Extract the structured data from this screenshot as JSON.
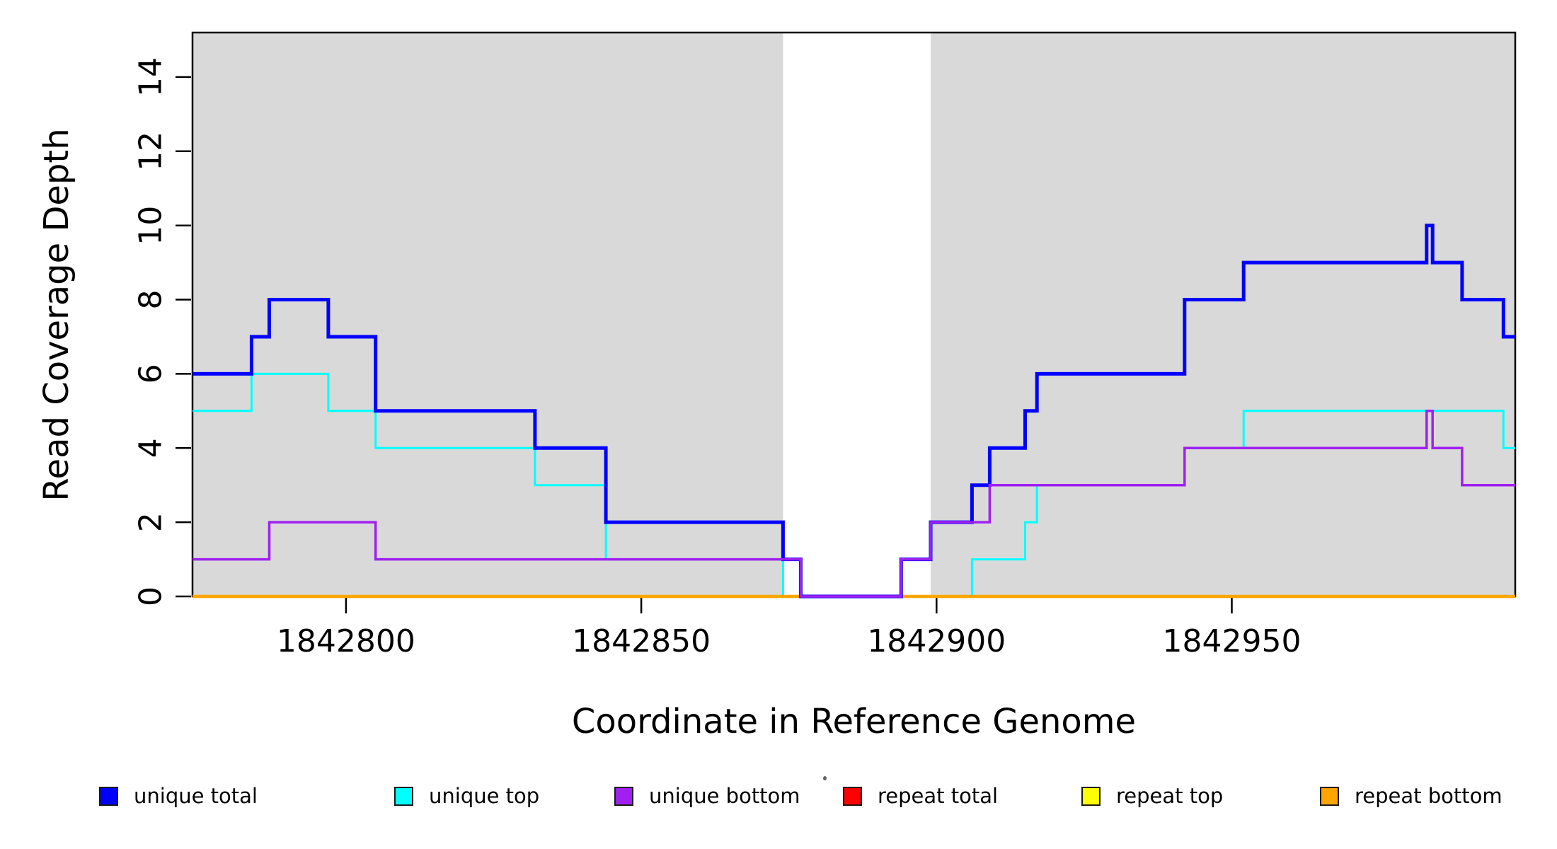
{
  "chart_data": {
    "type": "step",
    "title": "",
    "xlabel": "Coordinate in Reference Genome",
    "ylabel": "Read Coverage Depth",
    "xlim": [
      1842774,
      1842998
    ],
    "ylim": [
      0,
      15.2
    ],
    "x_ticks": [
      1842800,
      1842850,
      1842900,
      1842950
    ],
    "y_ticks": [
      0,
      2,
      4,
      6,
      8,
      10,
      12,
      14
    ],
    "grid": "off",
    "shade_color": "#d9d9d9",
    "shaded_regions": [
      [
        1842774,
        1842874
      ],
      [
        1842899,
        1842998
      ]
    ],
    "unshaded_gap": [
      1842874,
      1842899
    ],
    "draw_order": [
      "repeat total",
      "repeat top",
      "unique top",
      "repeat bottom",
      "unique total",
      "unique bottom"
    ],
    "series": [
      {
        "name": "unique total",
        "color": "#0000ff",
        "width": 5,
        "steps": [
          [
            1842774,
            6
          ],
          [
            1842784,
            7
          ],
          [
            1842787,
            8
          ],
          [
            1842797,
            7
          ],
          [
            1842805,
            5
          ],
          [
            1842832,
            4
          ],
          [
            1842844,
            2
          ],
          [
            1842874,
            1
          ],
          [
            1842877,
            0
          ],
          [
            1842894,
            1
          ],
          [
            1842899,
            2
          ],
          [
            1842906,
            3
          ],
          [
            1842909,
            4
          ],
          [
            1842915,
            5
          ],
          [
            1842917,
            6
          ],
          [
            1842942,
            8
          ],
          [
            1842952,
            9
          ],
          [
            1842983,
            10
          ],
          [
            1842984,
            9
          ],
          [
            1842989,
            8
          ],
          [
            1842996,
            7
          ]
        ]
      },
      {
        "name": "unique top",
        "color": "#00ffff",
        "width": 3,
        "steps": [
          [
            1842774,
            5
          ],
          [
            1842784,
            6
          ],
          [
            1842797,
            5
          ],
          [
            1842805,
            4
          ],
          [
            1842832,
            3
          ],
          [
            1842844,
            1
          ],
          [
            1842874,
            0
          ],
          [
            1842906,
            1
          ],
          [
            1842915,
            2
          ],
          [
            1842917,
            3
          ],
          [
            1842942,
            4
          ],
          [
            1842952,
            5
          ],
          [
            1842996,
            4
          ]
        ]
      },
      {
        "name": "unique bottom",
        "color": "#a020f0",
        "width": 3.5,
        "steps": [
          [
            1842774,
            1
          ],
          [
            1842787,
            2
          ],
          [
            1842805,
            1
          ],
          [
            1842877,
            0
          ],
          [
            1842894,
            1
          ],
          [
            1842899,
            2
          ],
          [
            1842909,
            3
          ],
          [
            1842942,
            4
          ],
          [
            1842983,
            5
          ],
          [
            1842984,
            4
          ],
          [
            1842989,
            3
          ]
        ]
      },
      {
        "name": "repeat total",
        "color": "#ff0000",
        "width": 3,
        "steps": [
          [
            1842774,
            0
          ]
        ]
      },
      {
        "name": "repeat top",
        "color": "#ffff00",
        "width": 3,
        "steps": [
          [
            1842774,
            0
          ]
        ]
      },
      {
        "name": "repeat bottom",
        "color": "#ffa500",
        "width": 4.5,
        "steps": [
          [
            1842774,
            0
          ]
        ]
      }
    ]
  },
  "legend": {
    "items": [
      {
        "label": "unique total",
        "color": "#0000ff"
      },
      {
        "label": "unique top",
        "color": "#00ffff"
      },
      {
        "label": "unique bottom",
        "color": "#a020f0"
      },
      {
        "label": "repeat total",
        "color": "#ff0000"
      },
      {
        "label": "repeat top",
        "color": "#ffff00"
      },
      {
        "label": "repeat bottom",
        "color": "#ffa500"
      }
    ]
  }
}
